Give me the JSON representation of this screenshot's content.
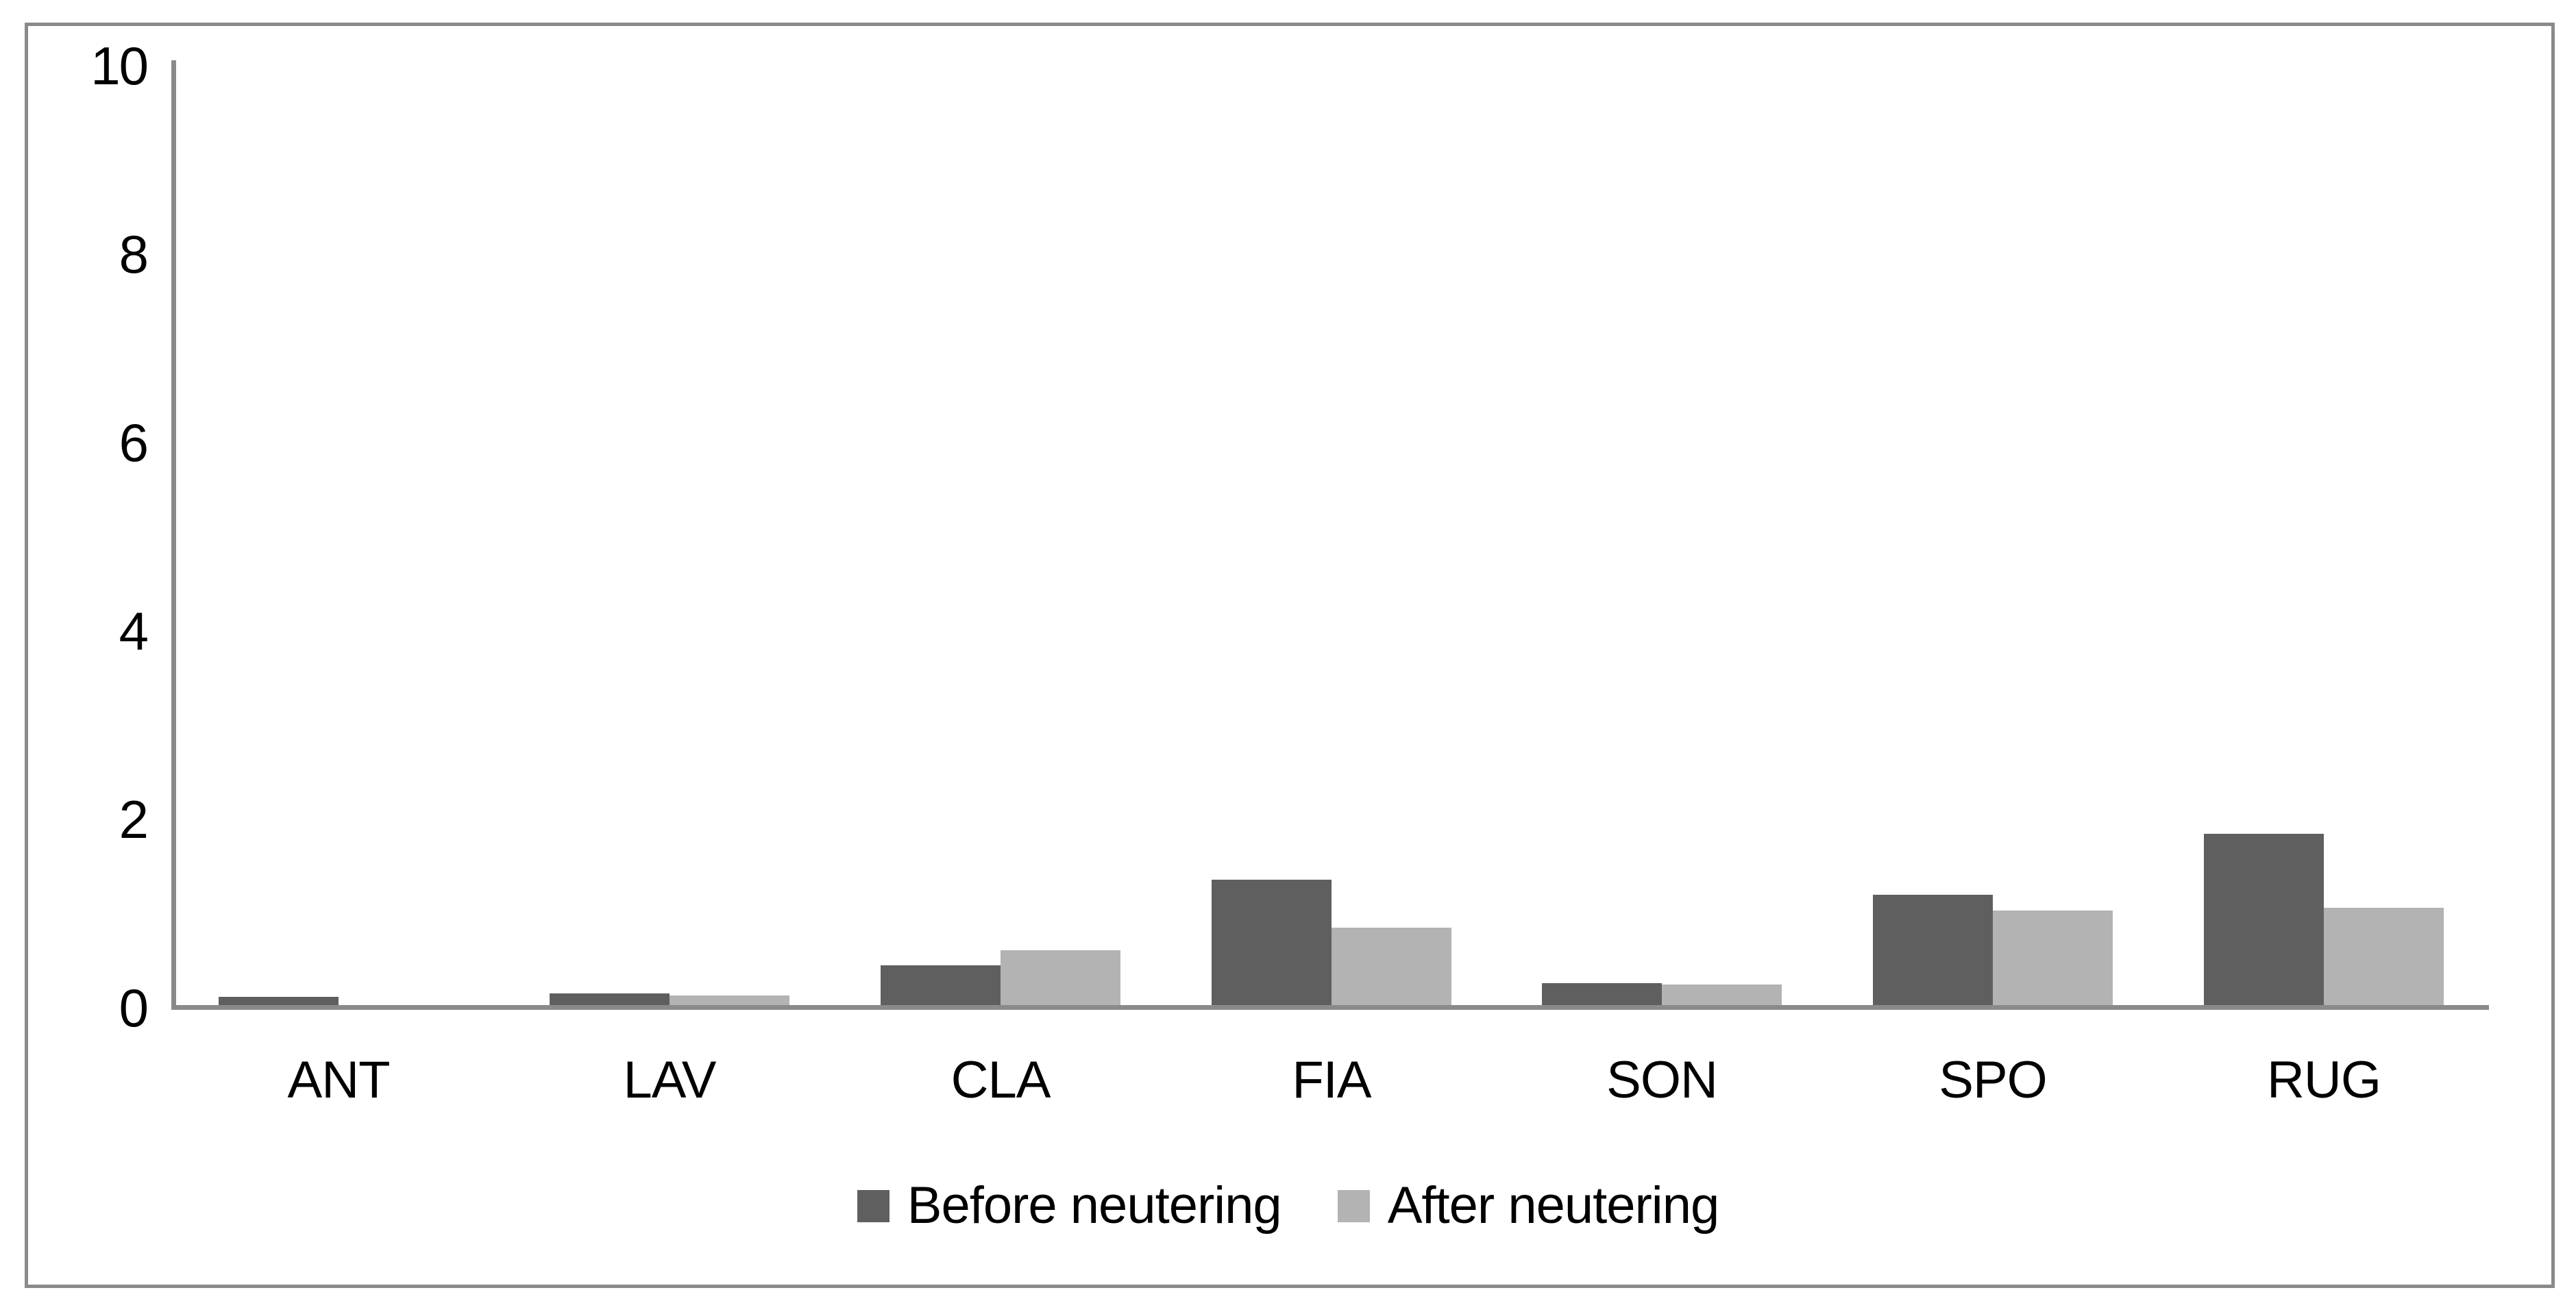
{
  "chart_data": {
    "type": "bar",
    "categories": [
      "ANT",
      "LAV",
      "CLA",
      "FIA",
      "SON",
      "SPO",
      "RUG"
    ],
    "series": [
      {
        "name": "Before neutering",
        "color": "#5f5f5f",
        "values": [
          0.09,
          0.12,
          0.42,
          1.33,
          0.23,
          1.17,
          1.82
        ]
      },
      {
        "name": "After neutering",
        "color": "#b3b3b3",
        "values": [
          0.0,
          0.1,
          0.58,
          0.82,
          0.22,
          1.0,
          1.03
        ]
      }
    ],
    "title": "",
    "xlabel": "",
    "ylabel": "",
    "ylim": [
      0,
      10
    ],
    "yticks": [
      0,
      2,
      4,
      6,
      8,
      10
    ],
    "grid": false,
    "legend_position": "bottom"
  },
  "colors": {
    "axis": "#8a8a8a",
    "border": "#8a8a8a",
    "text": "#000000",
    "background": "#ffffff"
  }
}
